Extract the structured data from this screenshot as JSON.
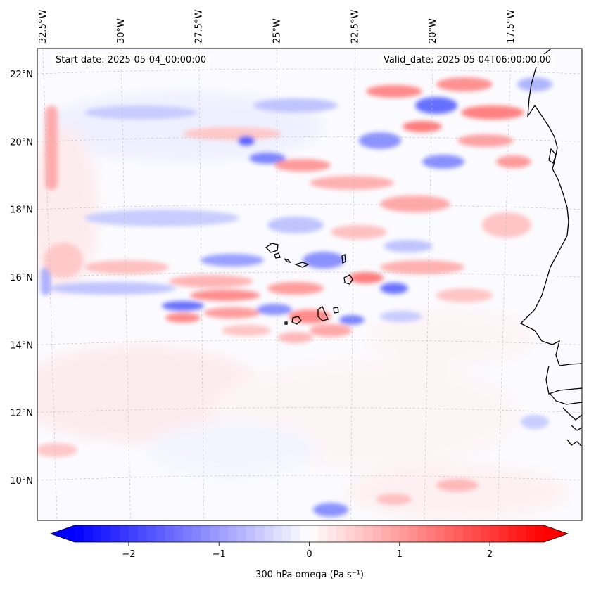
{
  "map": {
    "projection": "lambert-conformal",
    "extent": {
      "lon_min": -33.0,
      "lon_max": -15.8,
      "lat_min": 9.0,
      "lat_max": 22.8
    },
    "lon_ticks": [
      {
        "value": -32.5,
        "label": "32.5°W"
      },
      {
        "value": -30.0,
        "label": "30°W"
      },
      {
        "value": -27.5,
        "label": "27.5°W"
      },
      {
        "value": -25.0,
        "label": "25°W"
      },
      {
        "value": -22.5,
        "label": "22.5°W"
      },
      {
        "value": -20.0,
        "label": "20°W"
      },
      {
        "value": -17.5,
        "label": "17.5°W"
      }
    ],
    "lat_ticks": [
      {
        "value": 22,
        "label": "22°N"
      },
      {
        "value": 20,
        "label": "20°N"
      },
      {
        "value": 18,
        "label": "18°N"
      },
      {
        "value": 16,
        "label": "16°N"
      },
      {
        "value": 14,
        "label": "14°N"
      },
      {
        "value": 12,
        "label": "12°N"
      },
      {
        "value": 10,
        "label": "10°N"
      }
    ],
    "gridlines": true,
    "features": [
      "West African coastline",
      "Cape Verde islands"
    ]
  },
  "header": {
    "start_date": "Start date: 2025-05-04_00:00:00",
    "valid_date": "Valid_date: 2025-05-04T06:00:00.00"
  },
  "colorbar": {
    "label": "300 hPa omega (Pa s⁻¹)",
    "vmin": -2.6,
    "vmax": 2.6,
    "colormap": "bwr",
    "low_color": "#0000ff",
    "mid_color": "#ffffff",
    "high_color": "#ff0000",
    "ticks": [
      {
        "value": -2,
        "label": "−2"
      },
      {
        "value": -1,
        "label": "−1"
      },
      {
        "value": 0,
        "label": "0"
      },
      {
        "value": 1,
        "label": "1"
      },
      {
        "value": 2,
        "label": "2"
      }
    ]
  }
}
